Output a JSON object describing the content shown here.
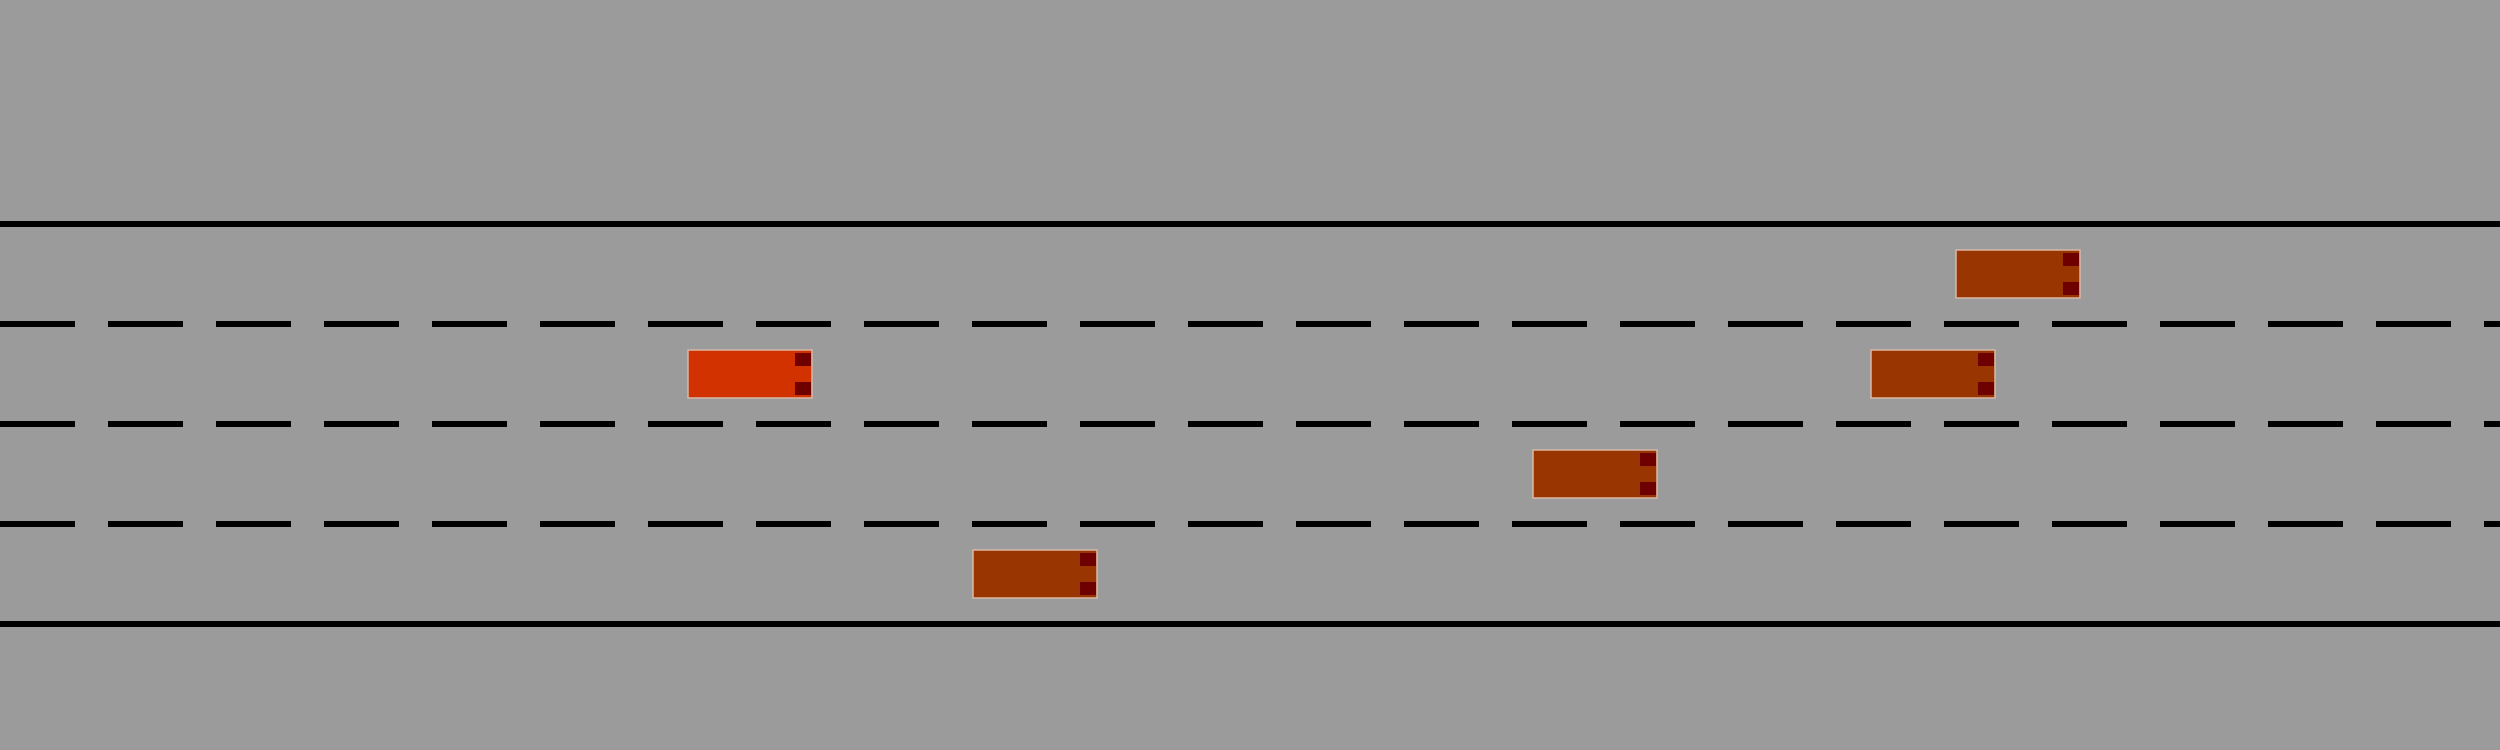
{
  "colors": {
    "background": "#9b9b9b",
    "lane_line": "#000000",
    "ego_car_body": "#d23200",
    "other_car_body": "#993500",
    "car_light": "#6e0000",
    "car_outline": "#d8b8a8"
  },
  "road": {
    "lane_count": 4,
    "marking_style": "solid outer edges, dashed lane dividers"
  },
  "vehicles": [
    {
      "id": "ego-car",
      "role": "ego",
      "lane": 2,
      "heading": "right",
      "color": "#d23200"
    },
    {
      "id": "car-1",
      "role": "other",
      "lane": 1,
      "heading": "right",
      "color": "#993500"
    },
    {
      "id": "car-2",
      "role": "other",
      "lane": 2,
      "heading": "right",
      "color": "#993500"
    },
    {
      "id": "car-3",
      "role": "other",
      "lane": 3,
      "heading": "right",
      "color": "#993500"
    },
    {
      "id": "car-4",
      "role": "other",
      "lane": 4,
      "heading": "right",
      "color": "#993500"
    }
  ]
}
